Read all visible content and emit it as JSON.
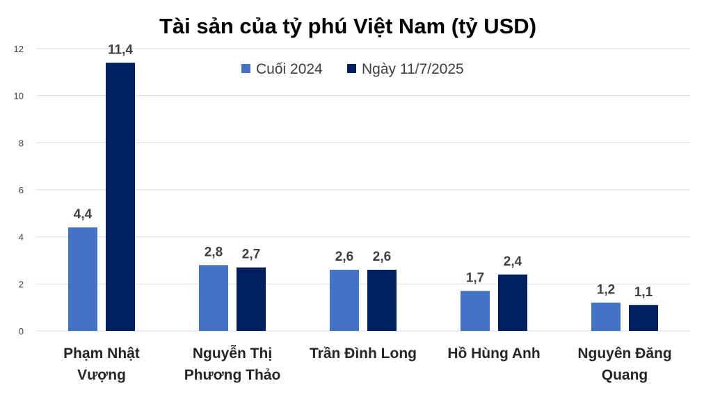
{
  "chart_data": {
    "type": "bar",
    "title": "Tài sản của tỷ phú Việt Nam (tỷ USD)",
    "categories": [
      [
        "Phạm Nhật",
        "Vượng"
      ],
      [
        "Nguyễn Thị",
        "Phương Thảo"
      ],
      [
        "Trần Đình Long"
      ],
      [
        "Hồ Hùng Anh"
      ],
      [
        "Nguyên Đăng",
        "Quang"
      ]
    ],
    "series": [
      {
        "name": "Cuối 2024",
        "color": "#4472c4",
        "values": [
          4.4,
          2.8,
          2.6,
          1.7,
          1.2
        ],
        "labels": [
          "4,4",
          "2,8",
          "2,6",
          "1,7",
          "1,2"
        ]
      },
      {
        "name": "Ngày 11/7/2025",
        "color": "#002060",
        "values": [
          11.4,
          2.7,
          2.6,
          2.4,
          1.1
        ],
        "labels": [
          "11,4",
          "2,7",
          "2,6",
          "2,4",
          "1,1"
        ]
      }
    ],
    "yticks": [
      0,
      2,
      4,
      6,
      8,
      10,
      12
    ],
    "ylim": [
      0,
      12
    ],
    "grid": true,
    "legend_position": "top-center",
    "xlabel": "",
    "ylabel": ""
  }
}
